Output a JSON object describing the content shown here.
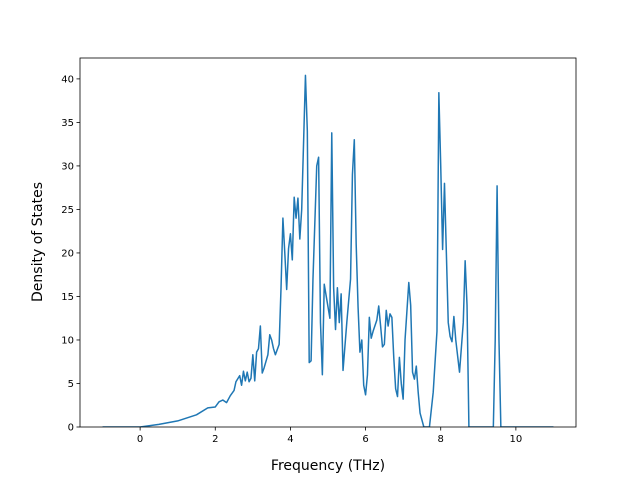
{
  "chart_data": {
    "type": "line",
    "x_label": "Frequency (THz)",
    "y_label": "Density of States",
    "xlim": [
      -1.6,
      11.6
    ],
    "ylim": [
      0,
      42.4
    ],
    "xticks": [
      0,
      2,
      4,
      6,
      8,
      10
    ],
    "yticks": [
      0,
      5,
      10,
      15,
      20,
      25,
      30,
      35,
      40
    ],
    "x": [
      -1,
      0,
      0.5,
      1,
      1.5,
      1.8,
      2,
      2.1,
      2.2,
      2.3,
      2.4,
      2.5,
      2.55,
      2.65,
      2.7,
      2.75,
      2.8,
      2.85,
      2.9,
      2.95,
      3.0,
      3.05,
      3.1,
      3.15,
      3.2,
      3.25,
      3.3,
      3.4,
      3.45,
      3.5,
      3.55,
      3.6,
      3.7,
      3.75,
      3.8,
      3.85,
      3.9,
      3.95,
      4.0,
      4.05,
      4.1,
      4.15,
      4.2,
      4.25,
      4.3,
      4.4,
      4.45,
      4.5,
      4.55,
      4.6,
      4.7,
      4.75,
      4.8,
      4.85,
      4.9,
      5.0,
      5.05,
      5.1,
      5.15,
      5.2,
      5.25,
      5.3,
      5.35,
      5.4,
      5.5,
      5.6,
      5.65,
      5.7,
      5.75,
      5.8,
      5.85,
      5.9,
      5.95,
      6.0,
      6.05,
      6.1,
      6.15,
      6.2,
      6.3,
      6.35,
      6.4,
      6.45,
      6.5,
      6.55,
      6.6,
      6.65,
      6.7,
      6.75,
      6.8,
      6.85,
      6.9,
      6.95,
      7.0,
      7.05,
      7.15,
      7.2,
      7.25,
      7.3,
      7.35,
      7.4,
      7.45,
      7.55,
      7.7,
      7.8,
      7.9,
      7.95,
      8.0,
      8.05,
      8.1,
      8.15,
      8.2,
      8.25,
      8.3,
      8.35,
      8.4,
      8.5,
      8.6,
      8.65,
      8.7,
      8.75,
      8.8,
      9.4,
      9.45,
      9.5,
      9.55,
      9.6,
      11
    ],
    "series": [
      {
        "color": "#1f77b4",
        "values": [
          0,
          0,
          0.3,
          0.7,
          1.4,
          2.2,
          2.3,
          2.9,
          3.1,
          2.8,
          3.6,
          4.2,
          5.2,
          5.9,
          4.8,
          6.4,
          5.3,
          6.3,
          5.2,
          5.6,
          8.3,
          5.3,
          8.6,
          9.0,
          11.6,
          6.2,
          6.8,
          8.3,
          10.6,
          10.0,
          9.0,
          8.3,
          9.5,
          16,
          24,
          20,
          15.8,
          20.5,
          22.2,
          19.2,
          26.4,
          24,
          26.3,
          21.6,
          25,
          40.4,
          34,
          7.4,
          7.6,
          17,
          30,
          31,
          12,
          6.0,
          16.4,
          13.8,
          12.5,
          33.8,
          16,
          11.2,
          16,
          12,
          15.3,
          6.5,
          12,
          17,
          29,
          33,
          21,
          13.8,
          8.6,
          10,
          4.8,
          3.7,
          6,
          12.6,
          10.2,
          11,
          12.3,
          13.9,
          11.6,
          9.2,
          9.5,
          13.4,
          11.6,
          13,
          12.6,
          8,
          4.4,
          3.5,
          8,
          5,
          3.2,
          10,
          16.6,
          14,
          6.3,
          5.5,
          7,
          4,
          1.6,
          0,
          0,
          4,
          11,
          38.4,
          30,
          20.4,
          28,
          20,
          12,
          10.4,
          9.8,
          12.7,
          10,
          6.3,
          12,
          19.1,
          14,
          0,
          0,
          0,
          10,
          27.7,
          10,
          0,
          0
        ]
      }
    ]
  }
}
